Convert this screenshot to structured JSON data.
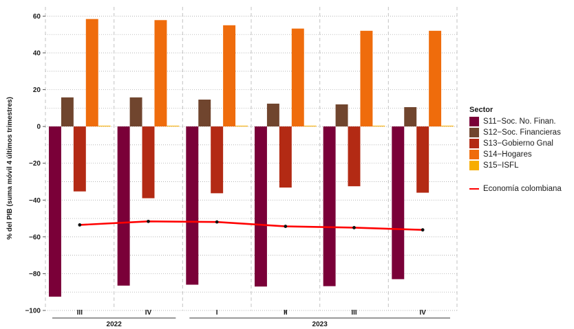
{
  "chart_data": {
    "type": "bar",
    "ylabel": "% del PIB (suma móvil 4 últimos trimestres)",
    "ylim": [
      -100,
      65
    ],
    "yticks": [
      60,
      40,
      20,
      0,
      -20,
      -40,
      -60,
      -80,
      -100
    ],
    "grid": true,
    "legend_position": "right",
    "legend_title": "Sector",
    "categories": [
      "III",
      "IV",
      "I",
      "II",
      "III",
      "IV"
    ],
    "years": [
      {
        "label": "2022",
        "quarters": 2
      },
      {
        "label": "2023",
        "quarters": 4
      }
    ],
    "series": [
      {
        "name": "S11−Soc. No. Finan.",
        "color": "#7a0038",
        "values": [
          -92.5,
          -86.5,
          -86,
          -87,
          -86.8,
          -83
        ]
      },
      {
        "name": "S12−Soc. Financieras",
        "color": "#70452e",
        "values": [
          15.8,
          15.8,
          14.6,
          12.4,
          12.0,
          10.5
        ]
      },
      {
        "name": "S13−Gobierno Gnal",
        "color": "#b32a14",
        "values": [
          -35.3,
          -39,
          -36.3,
          -33.2,
          -32.5,
          -36
        ]
      },
      {
        "name": "S14−Hogares",
        "color": "#ef6c0c",
        "values": [
          58.4,
          57.8,
          55,
          53.2,
          52,
          52
        ]
      },
      {
        "name": "S15−ISFL",
        "color": "#f7ad00",
        "values": [
          0.4,
          0.4,
          0.4,
          0.4,
          0.4,
          0.4
        ]
      }
    ],
    "line": {
      "name": "Economía colombiana",
      "color": "#ff0000",
      "values": [
        -53.5,
        -51.6,
        -51.9,
        -54.3,
        -55,
        -56.2
      ]
    }
  }
}
